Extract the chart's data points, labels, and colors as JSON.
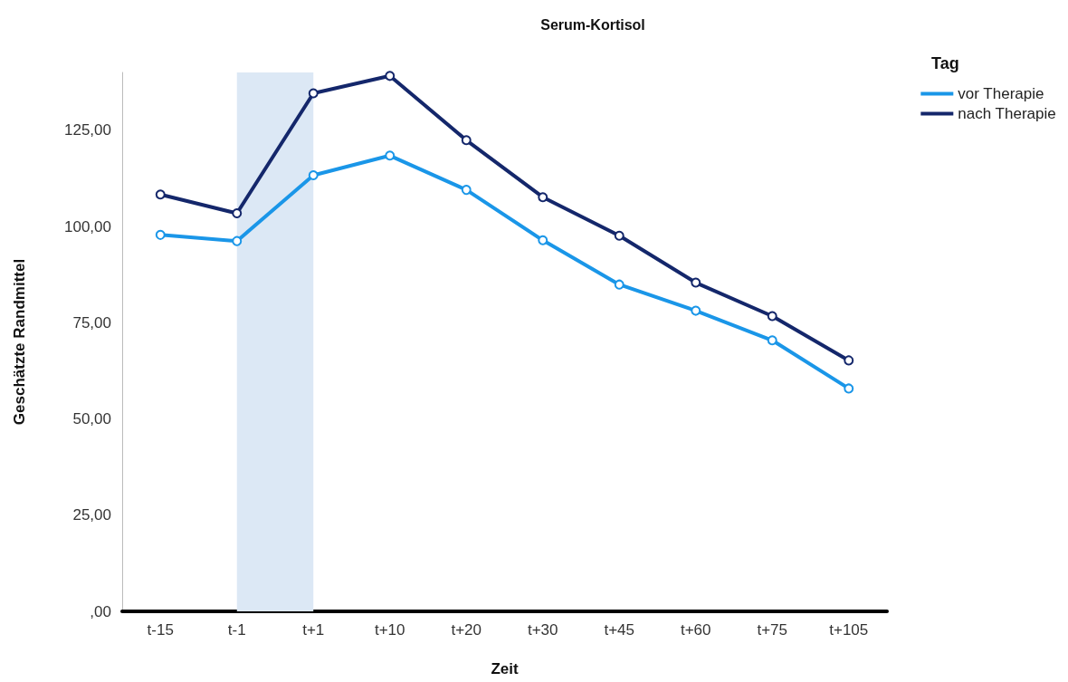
{
  "chart_data": {
    "type": "line",
    "title": "Serum-Kortisol",
    "xlabel": "Zeit",
    "ylabel": "Geschätzte Randmittel",
    "legend_title": "Tag",
    "categories": [
      "t-15",
      "t-1",
      "t+1",
      "t+10",
      "t+20",
      "t+30",
      "t+45",
      "t+60",
      "t+75",
      "t+105"
    ],
    "series": [
      {
        "name": "vor Therapie",
        "color": "#1a96e8",
        "values": [
          97.8,
          96.2,
          113.3,
          118.4,
          109.5,
          96.4,
          84.9,
          78.1,
          70.4,
          57.9
        ]
      },
      {
        "name": "nach Therapie",
        "color": "#14276b",
        "values": [
          108.3,
          103.4,
          134.6,
          139.1,
          122.4,
          107.6,
          97.6,
          85.4,
          76.7,
          65.2
        ]
      }
    ],
    "yticks": [
      {
        "value": 0,
        "label": ",00"
      },
      {
        "value": 25,
        "label": "25,00"
      },
      {
        "value": 50,
        "label": "50,00"
      },
      {
        "value": 75,
        "label": "75,00"
      },
      {
        "value": 100,
        "label": "100,00"
      },
      {
        "value": 125,
        "label": "125,00"
      }
    ],
    "ylim": [
      0,
      140
    ],
    "bands": [
      {
        "axis": "x",
        "from": "t-1",
        "to": "t+1",
        "color": "#dce8f5"
      }
    ],
    "grid": false,
    "legend": "top right",
    "marker": "circle",
    "line_style": "solid"
  }
}
